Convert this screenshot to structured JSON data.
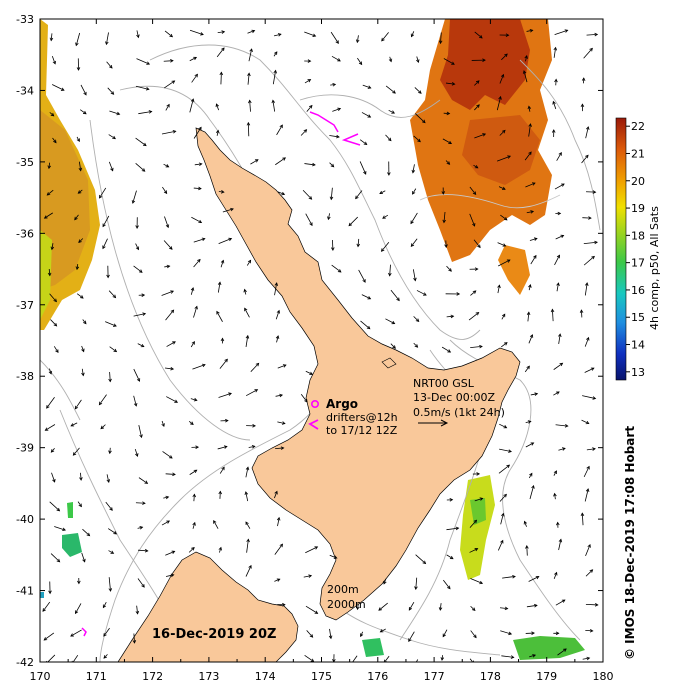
{
  "map": {
    "lon_range": [
      170,
      180
    ],
    "lat_range": [
      -42,
      -33
    ],
    "x_ticks": [
      "170",
      "171",
      "172",
      "173",
      "174",
      "175",
      "176",
      "177",
      "178",
      "179",
      "180"
    ],
    "y_ticks": [
      "-33",
      "-34",
      "-35",
      "-36",
      "-37",
      "-38",
      "-39",
      "-40",
      "-41",
      "-42"
    ],
    "land_color": "#f9c89a",
    "contour_color": "#b0b0b0"
  },
  "annotations": {
    "argo_label": "Argo",
    "drifters_line1": "drifters@12h",
    "drifters_line2": "to 17/12 12Z",
    "current_source": "NRT00 GSL",
    "current_time": "13-Dec 00:00Z",
    "current_scale": "0.5m/s (1kt 24h)",
    "depth_200": "200m",
    "depth_2000": "2000m",
    "date_stamp": "16-Dec-2019 20Z"
  },
  "colorbar": {
    "title": "4h comp, p50, All Sats",
    "ticks": [
      "22",
      "21",
      "20",
      "19",
      "18",
      "17",
      "16",
      "15",
      "14",
      "13"
    ],
    "min": 12.7,
    "max": 22.3
  },
  "credit": "© IMOS 18-Dec-2019 17:08 Hobart",
  "colors": {
    "drifter": "#ff00ff",
    "sst_warm": "#e46a0f",
    "sst_hot": "#b8320a",
    "sst_yellow": "#e6c000",
    "sst_green": "#5ac82a"
  }
}
